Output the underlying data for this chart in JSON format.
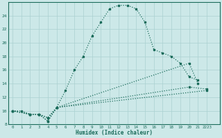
{
  "bg_color": "#cce8e8",
  "grid_color": "#aad0d0",
  "line_color": "#1a6b5a",
  "xlabel": "Humidex (Indice chaleur)",
  "xlim": [
    -0.5,
    23.5
  ],
  "ylim": [
    8,
    26
  ],
  "xtick_labels": [
    "0",
    "1",
    "2",
    "3",
    "4",
    "5",
    "6",
    "7",
    "8",
    "9",
    "10",
    "11",
    "12",
    "13",
    "14",
    "15",
    "16",
    "17",
    "18",
    "19",
    "20",
    "21",
    "2223"
  ],
  "ytick_vals": [
    8,
    10,
    12,
    14,
    16,
    18,
    20,
    22,
    24
  ],
  "s1_x": [
    0,
    1,
    2,
    3,
    4,
    5,
    6,
    7,
    8,
    9,
    10,
    11,
    12,
    13,
    14,
    15,
    16,
    17,
    18,
    19,
    20,
    21
  ],
  "s1_y": [
    10,
    10,
    9.5,
    9.5,
    8.5,
    10.5,
    13,
    16,
    18,
    21,
    23,
    25,
    25.5,
    25.5,
    25,
    23,
    19,
    18.5,
    18,
    17,
    15,
    14.5
  ],
  "s2_x": [
    0,
    2,
    3,
    4,
    5,
    20,
    21
  ],
  "s2_y": [
    10,
    9.5,
    9.5,
    8.5,
    10.5,
    17,
    14
  ],
  "s3_x": [
    0,
    2,
    3,
    4,
    5,
    20,
    22
  ],
  "s3_y": [
    10,
    9.5,
    9.5,
    9.0,
    10.5,
    13.5,
    13.2
  ],
  "s4_x": [
    0,
    2,
    3,
    4,
    5,
    22
  ],
  "s4_y": [
    10,
    9.5,
    9.5,
    9.0,
    10.5,
    13.0
  ]
}
